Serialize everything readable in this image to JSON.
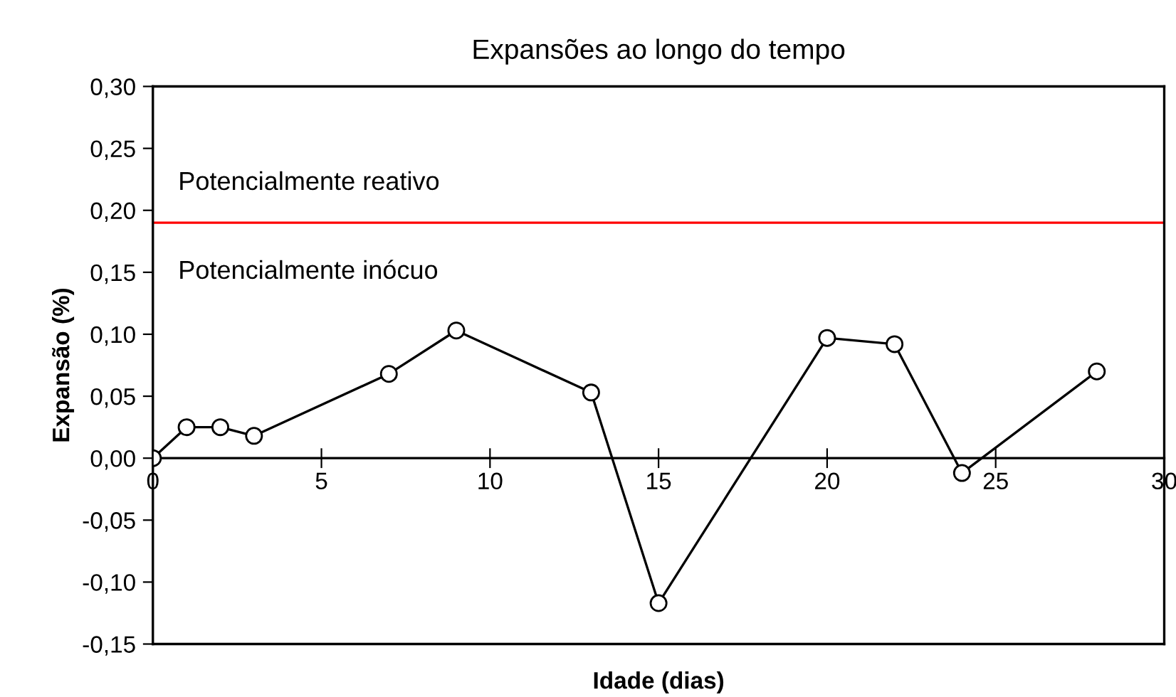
{
  "chart_data": {
    "type": "line",
    "title": "Expansões ao longo do tempo",
    "xlabel": "Idade (dias)",
    "ylabel": "Expansão (%)",
    "x": [
      0,
      1,
      2,
      3,
      7,
      9,
      13,
      15,
      20,
      22,
      24,
      28
    ],
    "series": [
      {
        "color": "#000000",
        "values": [
          0.0,
          0.025,
          0.025,
          0.018,
          0.068,
          0.103,
          0.053,
          -0.117,
          0.097,
          0.092,
          -0.012,
          0.07
        ]
      }
    ],
    "marker": "circle",
    "line_style": "solid",
    "grid": false,
    "xlim": [
      0,
      30
    ],
    "xticks": [
      0,
      5,
      10,
      15,
      20,
      25,
      30
    ],
    "ylim": [
      -0.15,
      0.3
    ],
    "yticks": [
      {
        "value": -0.15,
        "label": "-0,15"
      },
      {
        "value": -0.1,
        "label": "-0,10"
      },
      {
        "value": -0.05,
        "label": "-0,05"
      },
      {
        "value": 0,
        "label": "0,00"
      },
      {
        "value": 0.05,
        "label": "0,05"
      },
      {
        "value": 0.1,
        "label": "0,10"
      },
      {
        "value": 0.15,
        "label": "0,15"
      },
      {
        "value": 0.2,
        "label": "0,20"
      },
      {
        "value": 0.25,
        "label": "0,25"
      },
      {
        "value": 0.3,
        "label": "0,30"
      }
    ],
    "ref_lines": [
      {
        "axis": "y",
        "value": 0.19,
        "color": "#ff0000",
        "line_style": "solid"
      }
    ],
    "annotations": [
      "Potencialmente reativo",
      "Potencialmente inócuo"
    ]
  }
}
